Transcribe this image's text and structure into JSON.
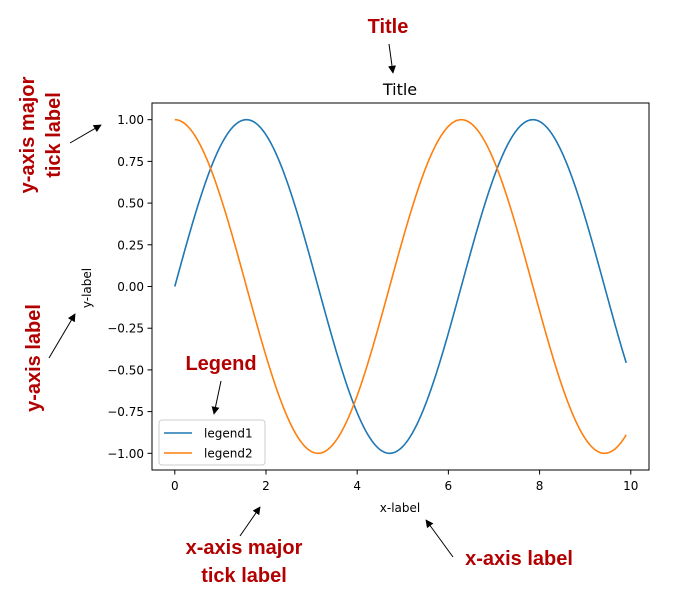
{
  "chart_data": {
    "type": "line",
    "title": "Title",
    "xlabel": "x-label",
    "ylabel": "y-label",
    "xlim": [
      -0.5,
      10.4
    ],
    "ylim": [
      -1.1,
      1.1
    ],
    "x_ticks": [
      0,
      2,
      4,
      6,
      8,
      10
    ],
    "x_tick_labels": [
      "0",
      "2",
      "4",
      "6",
      "8",
      "10"
    ],
    "y_ticks": [
      1.0,
      0.75,
      0.5,
      0.25,
      0.0,
      -0.25,
      -0.5,
      -0.75,
      -1.0
    ],
    "y_tick_labels": [
      "1.00",
      "0.75",
      "0.50",
      "0.25",
      "0.00",
      "−0.25",
      "−0.50",
      "−0.75",
      "−1.00"
    ],
    "legend_position": "lower-left",
    "grid": false,
    "series": [
      {
        "name": "legend1",
        "function": "sin(x)",
        "x_start": 0,
        "x_end": 9.9,
        "color": "#1f77b4"
      },
      {
        "name": "legend2",
        "function": "cos(x)",
        "x_start": 0,
        "x_end": 9.9,
        "color": "#ff7f0e"
      }
    ]
  },
  "annotations": {
    "color": "#b30000",
    "title": "Title",
    "legend": "Legend",
    "y_major_tick_label": [
      "y-axis major",
      "tick label"
    ],
    "y_axis_label": "y-axis label",
    "x_major_tick_label": [
      "x-axis major",
      "tick label"
    ],
    "x_axis_label": "x-axis label"
  }
}
